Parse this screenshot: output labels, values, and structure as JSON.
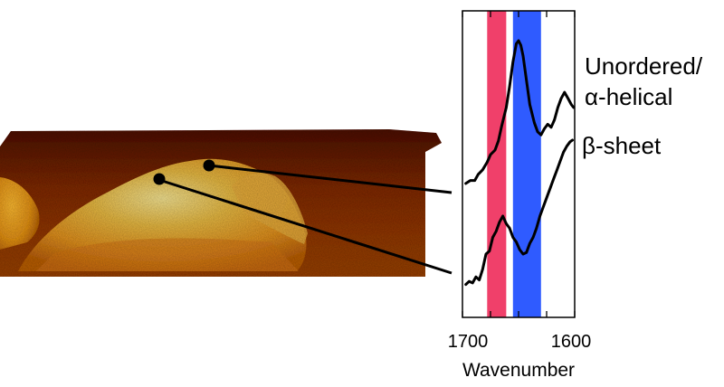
{
  "image": {
    "description": "3D AFM-style topography rendering of fibrillar aggregates (brown/orange/yellow surface) with two black probe markers linked to IR spectra"
  },
  "chart_data": {
    "type": "line",
    "title": "",
    "xlabel": "Wavenumber",
    "ylabel": "",
    "xlim": [
      1700,
      1600
    ],
    "x_reversed": true,
    "xticks": [
      "1700",
      "1600"
    ],
    "grid": false,
    "bands": [
      {
        "name": "beta",
        "from": 1678,
        "to": 1661,
        "color": "#f0406a"
      },
      {
        "name": "helix",
        "from": 1655,
        "to": 1630,
        "color": "#2f5bff"
      }
    ],
    "series": [
      {
        "name": "Unordered/ α-helical",
        "x": [
          1697,
          1693,
          1689,
          1686,
          1682,
          1678,
          1675,
          1671,
          1668,
          1665,
          1661,
          1658,
          1655,
          1652,
          1650,
          1648,
          1646,
          1643,
          1640,
          1636,
          1633,
          1630,
          1627,
          1624,
          1621,
          1618,
          1615,
          1612,
          1609,
          1606,
          1603,
          1601
        ],
        "y": [
          0.06,
          0.08,
          0.08,
          0.12,
          0.15,
          0.2,
          0.25,
          0.28,
          0.34,
          0.44,
          0.56,
          0.7,
          0.86,
          0.98,
          1.0,
          0.97,
          0.9,
          0.74,
          0.58,
          0.46,
          0.4,
          0.38,
          0.42,
          0.45,
          0.43,
          0.48,
          0.56,
          0.62,
          0.66,
          0.62,
          0.58,
          0.56
        ]
      },
      {
        "name": "β-sheet",
        "x": [
          1697,
          1694,
          1691,
          1688,
          1685,
          1682,
          1679,
          1676,
          1673,
          1670,
          1667,
          1664,
          1661,
          1658,
          1655,
          1652,
          1649,
          1646,
          1643,
          1640,
          1637,
          1634,
          1631,
          1628,
          1625,
          1622,
          1619,
          1616,
          1613,
          1610,
          1607,
          1604,
          1602
        ],
        "y": [
          0.05,
          0.07,
          0.06,
          0.1,
          0.08,
          0.15,
          0.25,
          0.27,
          0.36,
          0.4,
          0.46,
          0.5,
          0.45,
          0.42,
          0.36,
          0.33,
          0.28,
          0.25,
          0.26,
          0.32,
          0.36,
          0.42,
          0.5,
          0.56,
          0.62,
          0.68,
          0.74,
          0.8,
          0.86,
          0.92,
          0.96,
          0.99,
          1.0
        ]
      }
    ]
  }
}
